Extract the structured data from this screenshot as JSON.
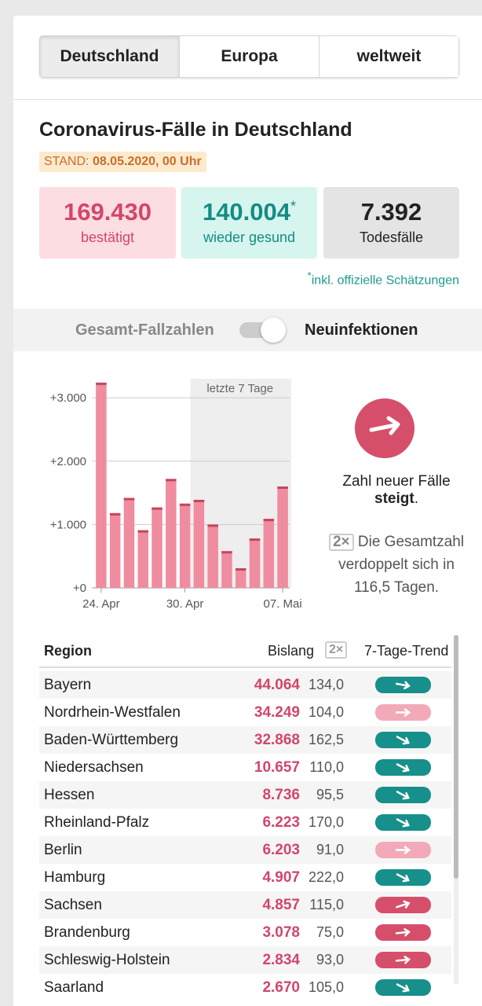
{
  "tabs": [
    "Deutschland",
    "Europa",
    "weltweit"
  ],
  "header": {
    "title": "Coronavirus-Fälle in Deutschland",
    "stand_label": "STAND:",
    "stand_value": "08.05.2020, 00 Uhr"
  },
  "stats": [
    {
      "value": "169.430",
      "label": "bestätigt"
    },
    {
      "value": "140.004",
      "mark": "*",
      "label": "wieder gesund"
    },
    {
      "value": "7.392",
      "label": "Todesfälle"
    }
  ],
  "footnote": {
    "mark": "*",
    "text": "inkl. offizielle Schätzungen"
  },
  "toggle": {
    "left": "Gesamt-Fallzahlen",
    "right": "Neuinfektionen"
  },
  "chart_data": {
    "type": "bar",
    "categories": [
      "24. Apr",
      null,
      null,
      null,
      null,
      null,
      "30. Apr",
      null,
      null,
      null,
      null,
      null,
      null,
      "07. Mai"
    ],
    "values": [
      3240,
      1180,
      1420,
      910,
      1270,
      1720,
      1330,
      1390,
      1000,
      580,
      310,
      780,
      1090,
      1600
    ],
    "color": "#f08ca0",
    "cap_color": "#c4455f",
    "ylim": [
      0,
      3300
    ],
    "yticks": [
      {
        "value": 0,
        "label": "+0"
      },
      {
        "value": 1000,
        "label": "+1.000"
      },
      {
        "value": 2000,
        "label": "+2.000"
      },
      {
        "value": 3000,
        "label": "+3.000"
      }
    ],
    "grid": true,
    "highlight_last": 7,
    "highlight_label": "letzte 7 Tage"
  },
  "trend": {
    "text": "Zahl neuer Fälle",
    "strong": "steigt",
    "punct": ".",
    "badge": "2×",
    "doubling_text": "Die Gesamtzahl verdoppelt sich in 116,5 Tagen."
  },
  "table": {
    "columns": [
      "Region",
      "Bislang",
      "2×",
      "7-Tage-Trend"
    ],
    "rows": [
      {
        "region": "Bayern",
        "count": "44.064",
        "doubling": "134,0",
        "trend": "down-slight"
      },
      {
        "region": "Nordrhein-Westfalen",
        "count": "34.249",
        "doubling": "104,0",
        "trend": "flat"
      },
      {
        "region": "Baden-Württemberg",
        "count": "32.868",
        "doubling": "162,5",
        "trend": "down"
      },
      {
        "region": "Niedersachsen",
        "count": "10.657",
        "doubling": "110,0",
        "trend": "down"
      },
      {
        "region": "Hessen",
        "count": "8.736",
        "doubling": "95,5",
        "trend": "down"
      },
      {
        "region": "Rheinland-Pfalz",
        "count": "6.223",
        "doubling": "170,0",
        "trend": "down"
      },
      {
        "region": "Berlin",
        "count": "6.203",
        "doubling": "91,0",
        "trend": "flat"
      },
      {
        "region": "Hamburg",
        "count": "4.907",
        "doubling": "222,0",
        "trend": "down"
      },
      {
        "region": "Sachsen",
        "count": "4.857",
        "doubling": "115,0",
        "trend": "up"
      },
      {
        "region": "Brandenburg",
        "count": "3.078",
        "doubling": "75,0",
        "trend": "up-flat"
      },
      {
        "region": "Schleswig-Holstein",
        "count": "2.834",
        "doubling": "93,0",
        "trend": "up-flat"
      },
      {
        "region": "Saarland",
        "count": "2.670",
        "doubling": "105,0",
        "trend": "down"
      }
    ]
  }
}
